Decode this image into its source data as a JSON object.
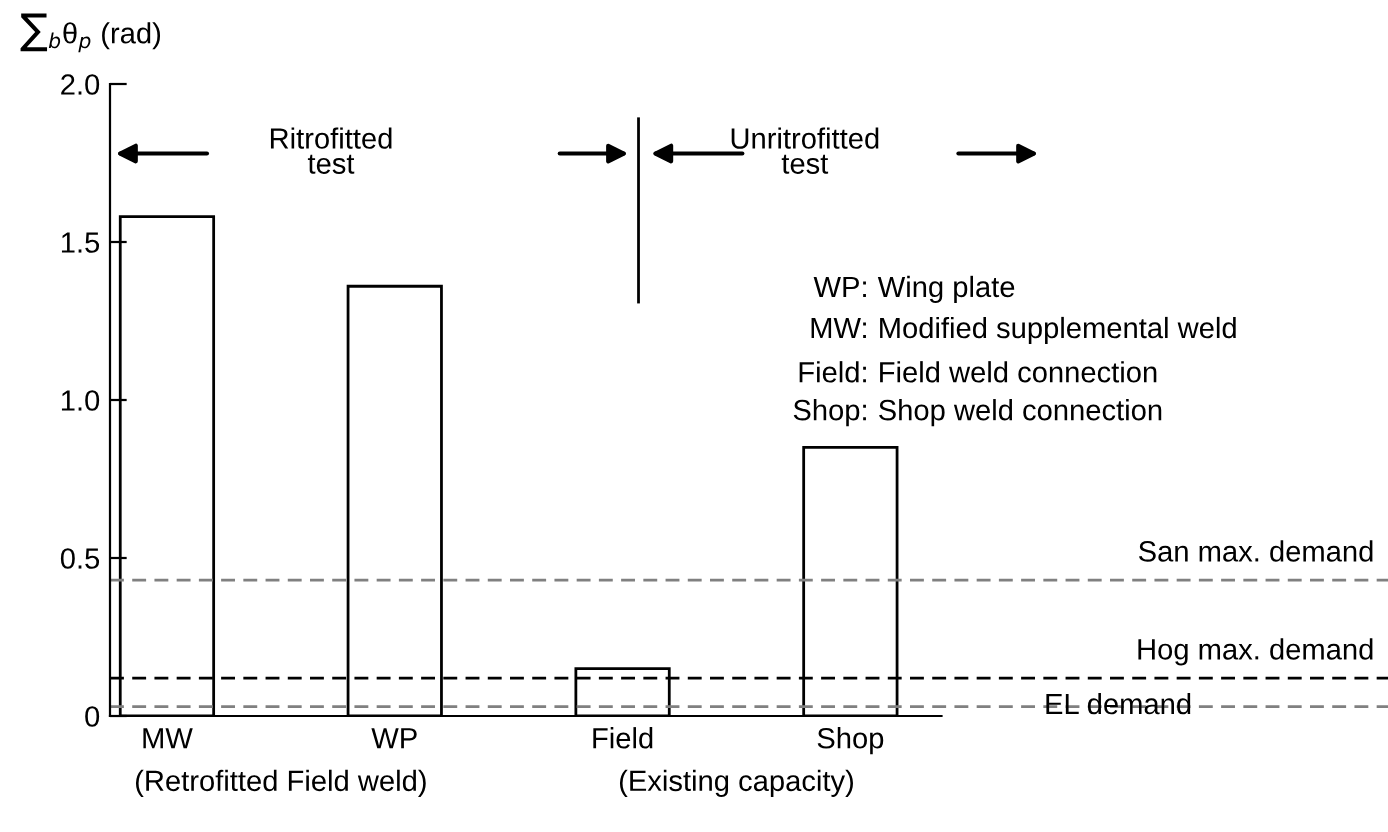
{
  "chart_data": {
    "type": "bar",
    "ylabel": "∑$_{b}$θ$_{p}$ (rad)",
    "categories": [
      "MW",
      "WP",
      "Field",
      "Shop"
    ],
    "values": [
      1.58,
      1.36,
      0.15,
      0.85
    ],
    "color": "#ffffff",
    "ylim": [
      0,
      2.0
    ],
    "yticks": [
      0,
      {
        "value": 0.5,
        "label": "0.5"
      },
      {
        "value": 1.0,
        "label": "1.0"
      },
      {
        "value": 1.5,
        "label": "1.5"
      },
      {
        "value": 2.0,
        "label": "2.0"
      }
    ],
    "ref_lines": [
      {
        "axis": "y",
        "value": 0.43,
        "label": "San max. demand",
        "color": "#808080",
        "line_style": "dashed"
      },
      {
        "axis": "y",
        "value": 0.12,
        "label": "Hog max. demand",
        "color": "#000000",
        "line_style": "dashed"
      },
      {
        "axis": "y",
        "value": 0.03,
        "label": "EL demand",
        "color": "#808080",
        "line_style": "dashed"
      }
    ],
    "annotations": [
      "(Retrofitted Field weld)",
      "(Existing capacity)",
      "Ritrofitted\ntest",
      "Unritrofitted\ntest",
      "WP: Wing plate",
      "MW: Modified supplemental weld",
      "Field: Field weld connection",
      "Shop: Shop weld connection"
    ],
    "grid": false,
    "legend": false
  }
}
